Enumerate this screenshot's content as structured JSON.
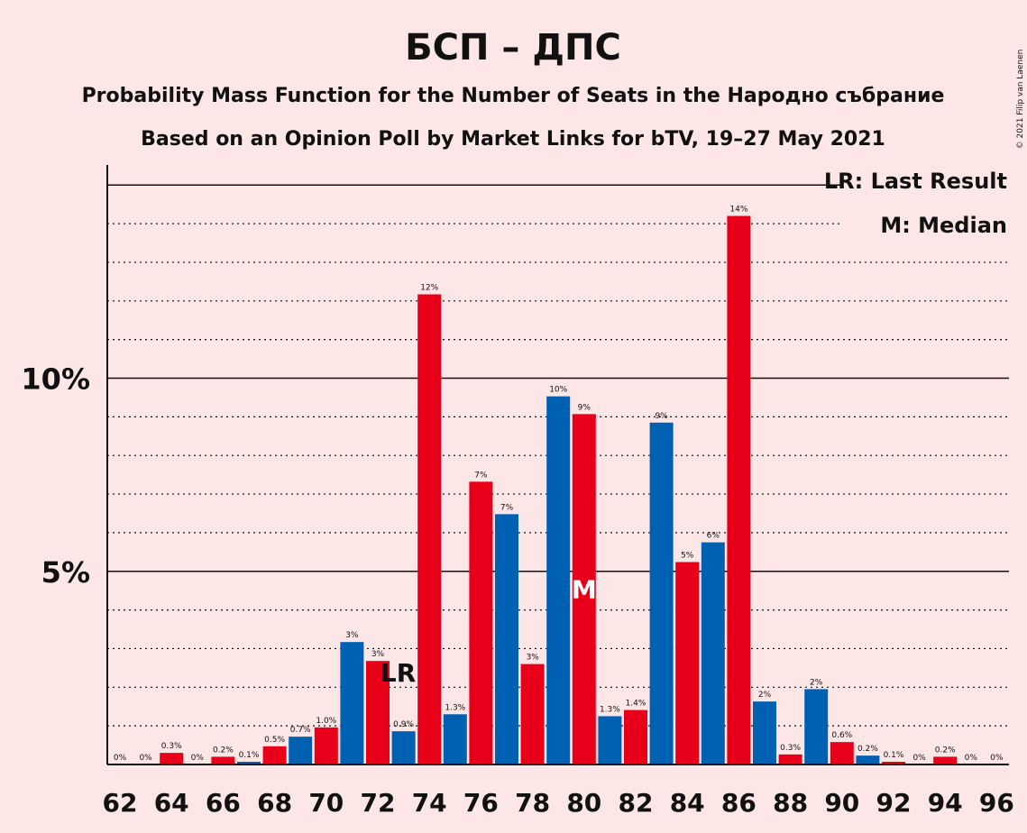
{
  "chart_data": {
    "type": "bar",
    "title": "БСП – ДПС",
    "subtitle_1": "Probability Mass Function for the Number of Seats in the Народно събрание",
    "subtitle_2": "Based on an Opinion Poll by Market Links for bTV, 19–27 May 2021",
    "copyright": "© 2021 Filip van Laenen",
    "legend": {
      "last_result": "LR: Last Result",
      "median": "M: Median",
      "placement": "top-right"
    },
    "markers": {
      "last_result": {
        "seat": 73,
        "label": "LR"
      },
      "median": {
        "seat": 80,
        "label": "M"
      }
    },
    "y_ticks": [
      {
        "value": 5,
        "label": "5%"
      },
      {
        "value": 10,
        "label": "10%"
      }
    ],
    "ylim": [
      0,
      15.5
    ],
    "x_tick_labels": [
      "62",
      "64",
      "66",
      "68",
      "70",
      "72",
      "74",
      "76",
      "78",
      "80",
      "82",
      "84",
      "86",
      "88",
      "90",
      "92",
      "94",
      "96"
    ],
    "bars": [
      {
        "seat": 62,
        "value": 0,
        "label": "0%"
      },
      {
        "seat": 63,
        "value": 0,
        "label": "0%"
      },
      {
        "seat": 64,
        "value": 0.3,
        "label": "0.3%"
      },
      {
        "seat": 65,
        "value": 0,
        "label": "0%"
      },
      {
        "seat": 66,
        "value": 0.2,
        "label": "0.2%"
      },
      {
        "seat": 67,
        "value": 0.07,
        "label": "0.1%"
      },
      {
        "seat": 68,
        "value": 0.47,
        "label": "0.5%"
      },
      {
        "seat": 69,
        "value": 0.72,
        "label": "0.7%"
      },
      {
        "seat": 70,
        "value": 0.96,
        "label": "1.0%"
      },
      {
        "seat": 71,
        "value": 3.17,
        "label": "3%"
      },
      {
        "seat": 72,
        "value": 2.68,
        "label": "3%"
      },
      {
        "seat": 73,
        "value": 0.86,
        "label": "0.9%"
      },
      {
        "seat": 74,
        "value": 12.17,
        "label": "12%"
      },
      {
        "seat": 75,
        "value": 1.3,
        "label": "1.3%"
      },
      {
        "seat": 76,
        "value": 7.32,
        "label": "7%"
      },
      {
        "seat": 77,
        "value": 6.48,
        "label": "7%"
      },
      {
        "seat": 78,
        "value": 2.6,
        "label": "3%"
      },
      {
        "seat": 79,
        "value": 9.53,
        "label": "10%"
      },
      {
        "seat": 80,
        "value": 9.07,
        "label": "9%"
      },
      {
        "seat": 81,
        "value": 1.25,
        "label": "1.3%"
      },
      {
        "seat": 82,
        "value": 1.41,
        "label": "1.4%"
      },
      {
        "seat": 83,
        "value": 8.85,
        "label": "9%"
      },
      {
        "seat": 84,
        "value": 5.24,
        "label": "5%"
      },
      {
        "seat": 85,
        "value": 5.75,
        "label": "6%"
      },
      {
        "seat": 86,
        "value": 14.2,
        "label": "14%"
      },
      {
        "seat": 87,
        "value": 1.63,
        "label": "2%"
      },
      {
        "seat": 88,
        "value": 0.26,
        "label": "0.3%"
      },
      {
        "seat": 89,
        "value": 1.95,
        "label": "2%"
      },
      {
        "seat": 90,
        "value": 0.58,
        "label": "0.6%"
      },
      {
        "seat": 91,
        "value": 0.23,
        "label": "0.2%"
      },
      {
        "seat": 92,
        "value": 0.07,
        "label": "0.1%"
      },
      {
        "seat": 93,
        "value": 0,
        "label": "0%"
      },
      {
        "seat": 94,
        "value": 0.2,
        "label": "0.2%"
      },
      {
        "seat": 95,
        "value": 0,
        "label": "0%"
      },
      {
        "seat": 96,
        "value": 0,
        "label": "0%"
      }
    ],
    "colors": {
      "background": "#fde6e6",
      "even_seat_bar": "#e8001a",
      "odd_seat_bar": "#0061b3",
      "text": "#111111"
    }
  }
}
